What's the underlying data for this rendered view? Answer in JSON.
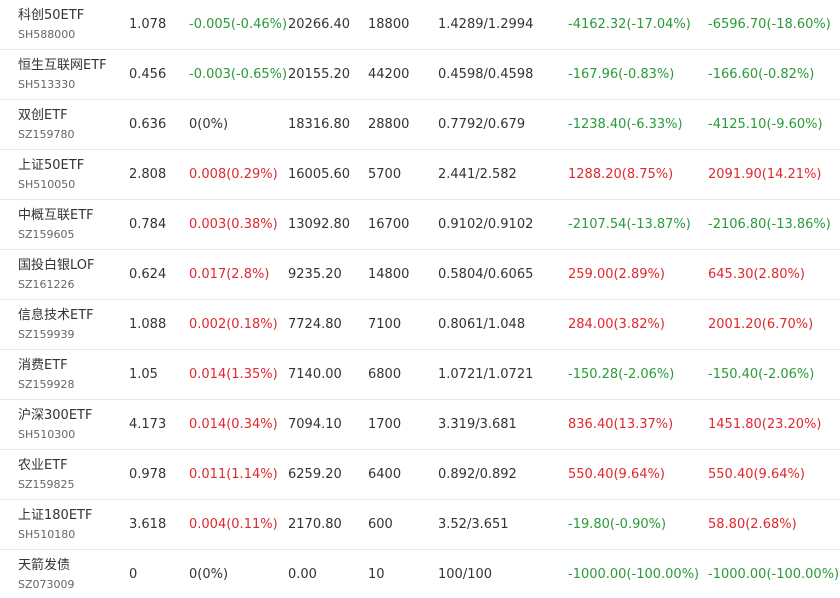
{
  "colors": {
    "up": "#e0282e",
    "down": "#2a9a3a",
    "flat": "#333333"
  },
  "rows": [
    {
      "name": "科创50ETF",
      "code": "SH588000",
      "price": "1.078",
      "change": "-0.005(-0.46%)",
      "change_dir": "down",
      "value": "20266.40",
      "qty": "18800",
      "cost": "1.4289/1.2994",
      "today": "-4162.32(-17.04%)",
      "today_dir": "down",
      "total": "-6596.70(-18.60%)",
      "total_dir": "down"
    },
    {
      "name": "恒生互联网ETF",
      "code": "SH513330",
      "price": "0.456",
      "change": "-0.003(-0.65%)",
      "change_dir": "down",
      "value": "20155.20",
      "qty": "44200",
      "cost": "0.4598/0.4598",
      "today": "-167.96(-0.83%)",
      "today_dir": "down",
      "total": "-166.60(-0.82%)",
      "total_dir": "down"
    },
    {
      "name": "双创ETF",
      "code": "SZ159780",
      "price": "0.636",
      "change": "0(0%)",
      "change_dir": "flat",
      "value": "18316.80",
      "qty": "28800",
      "cost": "0.7792/0.679",
      "today": "-1238.40(-6.33%)",
      "today_dir": "down",
      "total": "-4125.10(-9.60%)",
      "total_dir": "down"
    },
    {
      "name": "上证50ETF",
      "code": "SH510050",
      "price": "2.808",
      "change": "0.008(0.29%)",
      "change_dir": "up",
      "value": "16005.60",
      "qty": "5700",
      "cost": "2.441/2.582",
      "today": "1288.20(8.75%)",
      "today_dir": "up",
      "total": "2091.90(14.21%)",
      "total_dir": "up"
    },
    {
      "name": "中概互联ETF",
      "code": "SZ159605",
      "price": "0.784",
      "change": "0.003(0.38%)",
      "change_dir": "up",
      "value": "13092.80",
      "qty": "16700",
      "cost": "0.9102/0.9102",
      "today": "-2107.54(-13.87%)",
      "today_dir": "down",
      "total": "-2106.80(-13.86%)",
      "total_dir": "down"
    },
    {
      "name": "国投白银LOF",
      "code": "SZ161226",
      "price": "0.624",
      "change": "0.017(2.8%)",
      "change_dir": "up",
      "value": "9235.20",
      "qty": "14800",
      "cost": "0.5804/0.6065",
      "today": "259.00(2.89%)",
      "today_dir": "up",
      "total": "645.30(2.80%)",
      "total_dir": "up"
    },
    {
      "name": "信息技术ETF",
      "code": "SZ159939",
      "price": "1.088",
      "change": "0.002(0.18%)",
      "change_dir": "up",
      "value": "7724.80",
      "qty": "7100",
      "cost": "0.8061/1.048",
      "today": "284.00(3.82%)",
      "today_dir": "up",
      "total": "2001.20(6.70%)",
      "total_dir": "up"
    },
    {
      "name": "消费ETF",
      "code": "SZ159928",
      "price": "1.05",
      "change": "0.014(1.35%)",
      "change_dir": "up",
      "value": "7140.00",
      "qty": "6800",
      "cost": "1.0721/1.0721",
      "today": "-150.28(-2.06%)",
      "today_dir": "down",
      "total": "-150.40(-2.06%)",
      "total_dir": "down"
    },
    {
      "name": "沪深300ETF",
      "code": "SH510300",
      "price": "4.173",
      "change": "0.014(0.34%)",
      "change_dir": "up",
      "value": "7094.10",
      "qty": "1700",
      "cost": "3.319/3.681",
      "today": "836.40(13.37%)",
      "today_dir": "up",
      "total": "1451.80(23.20%)",
      "total_dir": "up"
    },
    {
      "name": "农业ETF",
      "code": "SZ159825",
      "price": "0.978",
      "change": "0.011(1.14%)",
      "change_dir": "up",
      "value": "6259.20",
      "qty": "6400",
      "cost": "0.892/0.892",
      "today": "550.40(9.64%)",
      "today_dir": "up",
      "total": "550.40(9.64%)",
      "total_dir": "up"
    },
    {
      "name": "上证180ETF",
      "code": "SH510180",
      "price": "3.618",
      "change": "0.004(0.11%)",
      "change_dir": "up",
      "value": "2170.80",
      "qty": "600",
      "cost": "3.52/3.651",
      "today": "-19.80(-0.90%)",
      "today_dir": "down",
      "total": "58.80(2.68%)",
      "total_dir": "up"
    },
    {
      "name": "天箭发债",
      "code": "SZ073009",
      "price": "0",
      "change": "0(0%)",
      "change_dir": "flat",
      "value": "0.00",
      "qty": "10",
      "cost": "100/100",
      "today": "-1000.00(-100.00%)",
      "today_dir": "down",
      "total": "-1000.00(-100.00%)",
      "total_dir": "down"
    }
  ]
}
